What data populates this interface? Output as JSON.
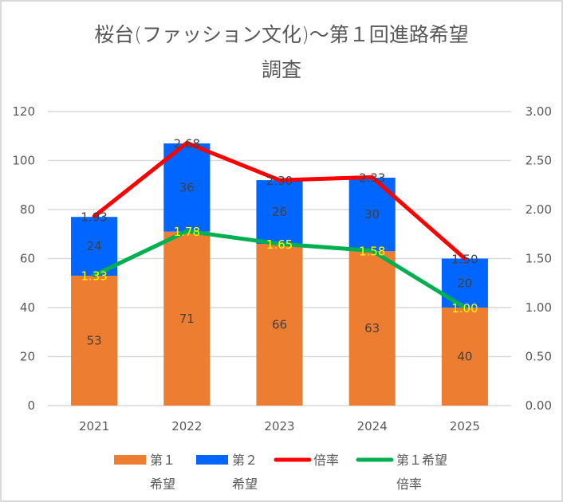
{
  "chart_data": {
    "type": "bar",
    "subtype": "stacked-bar-with-lines",
    "title_lines": [
      "桜台(ファッション文化)～第１回進路希望",
      "調査"
    ],
    "categories": [
      "2021",
      "2022",
      "2023",
      "2024",
      "2025"
    ],
    "series": [
      {
        "name": "第１希望",
        "type": "bar",
        "axis": "left",
        "color": "#ED7D31",
        "values": [
          53,
          71,
          66,
          63,
          40
        ]
      },
      {
        "name": "第２希望",
        "type": "bar",
        "axis": "left",
        "color": "#0066FF",
        "values": [
          24,
          36,
          26,
          30,
          20
        ]
      },
      {
        "name": "倍率",
        "type": "line",
        "axis": "right",
        "color": "#FF0000",
        "values": [
          1.93,
          2.68,
          2.3,
          2.33,
          1.5
        ],
        "labels": [
          "1.93",
          "2.68",
          "2.30",
          "2.33",
          "1.50"
        ],
        "label_color": "#404040"
      },
      {
        "name": "第１希望倍率",
        "type": "line",
        "axis": "right",
        "color": "#00B050",
        "values": [
          1.33,
          1.78,
          1.65,
          1.58,
          1.0
        ],
        "labels": [
          "1.33",
          "1.78",
          "1.65",
          "1.58",
          "1.00"
        ],
        "label_color": "#FFFF00"
      }
    ],
    "ylim_left": [
      0,
      120
    ],
    "yticks_left": [
      "0",
      "20",
      "40",
      "60",
      "80",
      "100",
      "120"
    ],
    "ylim_right": [
      0,
      3
    ],
    "yticks_right": [
      "0.00",
      "0.50",
      "1.00",
      "1.50",
      "2.00",
      "2.50",
      "3.00"
    ],
    "grid": true,
    "legend": {
      "placement": "bottom",
      "entries": [
        {
          "lines": [
            "第１",
            "希望"
          ],
          "kind": "box",
          "color": "#ED7D31"
        },
        {
          "lines": [
            "第２",
            "希望"
          ],
          "kind": "box",
          "color": "#0066FF"
        },
        {
          "lines": [
            "倍率"
          ],
          "kind": "line",
          "color": "#FF0000"
        },
        {
          "lines": [
            "第１希望",
            "倍率"
          ],
          "kind": "line",
          "color": "#00B050"
        }
      ]
    },
    "xlabel": "",
    "ylabel": ""
  }
}
